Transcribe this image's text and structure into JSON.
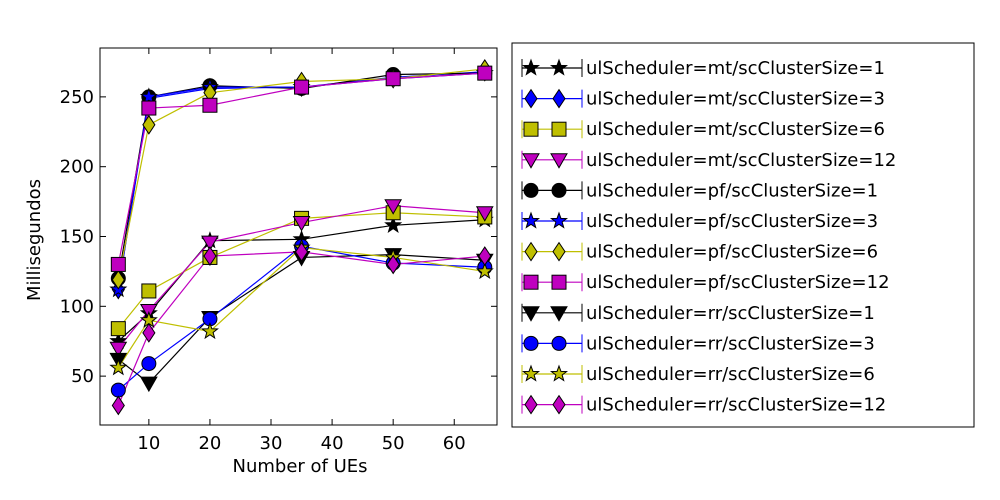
{
  "chart_data": {
    "type": "line",
    "title": "",
    "xlabel": "Number of UEs",
    "ylabel": "Millisegundos",
    "xlim": [
      2,
      67
    ],
    "ylim": [
      15,
      285
    ],
    "xticks": [
      10,
      20,
      30,
      40,
      50,
      60
    ],
    "yticks": [
      50,
      100,
      150,
      200,
      250
    ],
    "x": [
      5,
      10,
      20,
      35,
      50,
      65
    ],
    "grid": false,
    "legend_position": "outside-right",
    "series": [
      {
        "name": "ulScheduler=mt/scClusterSize=1",
        "color": "#000000",
        "marker": "star",
        "values": [
          75,
          95,
          147,
          148,
          158,
          162
        ]
      },
      {
        "name": "ulScheduler=mt/scClusterSize=3",
        "color": "#0000ff",
        "marker": "diamond",
        "values": [
          112,
          249,
          256,
          257,
          264,
          268
        ]
      },
      {
        "name": "ulScheduler=mt/scClusterSize=6",
        "color": "#bfbf00",
        "marker": "square",
        "values": [
          84,
          111,
          135,
          163,
          167,
          164
        ]
      },
      {
        "name": "ulScheduler=mt/scClusterSize=12",
        "color": "#bf00bf",
        "marker": "triangle-down",
        "values": [
          70,
          97,
          146,
          160,
          172,
          167
        ]
      },
      {
        "name": "ulScheduler=pf/scClusterSize=1",
        "color": "#000000",
        "marker": "circle",
        "values": [
          120,
          250,
          258,
          256,
          266,
          267
        ]
      },
      {
        "name": "ulScheduler=pf/scClusterSize=3",
        "color": "#0000ff",
        "marker": "star",
        "values": [
          112,
          250,
          257,
          257,
          263,
          267
        ]
      },
      {
        "name": "ulScheduler=pf/scClusterSize=6",
        "color": "#bfbf00",
        "marker": "diamond",
        "values": [
          119,
          230,
          253,
          261,
          263,
          270
        ]
      },
      {
        "name": "ulScheduler=pf/scClusterSize=12",
        "color": "#bf00bf",
        "marker": "square",
        "values": [
          130,
          242,
          244,
          257,
          263,
          267
        ]
      },
      {
        "name": "ulScheduler=rr/scClusterSize=1",
        "color": "#000000",
        "marker": "triangle-down",
        "values": [
          62,
          45,
          92,
          135,
          137,
          133
        ]
      },
      {
        "name": "ulScheduler=rr/scClusterSize=3",
        "color": "#0000ff",
        "marker": "circle",
        "values": [
          40,
          59,
          91,
          143,
          131,
          128
        ]
      },
      {
        "name": "ulScheduler=rr/scClusterSize=6",
        "color": "#bfbf00",
        "marker": "star",
        "values": [
          56,
          90,
          82,
          142,
          135,
          125
        ]
      },
      {
        "name": "ulScheduler=rr/scClusterSize=12",
        "color": "#bf00bf",
        "marker": "diamond",
        "values": [
          29,
          81,
          136,
          139,
          130,
          136
        ]
      }
    ]
  }
}
